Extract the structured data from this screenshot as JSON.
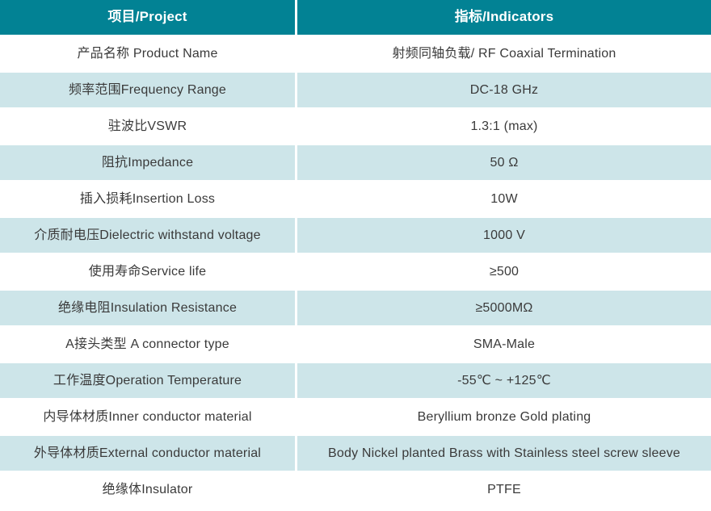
{
  "table": {
    "header": {
      "project": "项目/Project",
      "indicators": "指标/Indicators"
    },
    "rows": [
      {
        "project": "产品名称 Product Name",
        "indicator": "射频同轴负载/ RF Coaxial Termination"
      },
      {
        "project": "频率范围Frequency Range",
        "indicator": "DC-18 GHz"
      },
      {
        "project": "驻波比VSWR",
        "indicator": "1.3:1 (max)"
      },
      {
        "project": "阻抗Impedance",
        "indicator": "50 Ω"
      },
      {
        "project": "插入损耗Insertion Loss",
        "indicator": "10W"
      },
      {
        "project": "介质耐电压Dielectric withstand voltage",
        "indicator": "1000 V"
      },
      {
        "project": "使用寿命Service life",
        "indicator": "≥500"
      },
      {
        "project": "绝缘电阻Insulation Resistance",
        "indicator": "≥5000MΩ"
      },
      {
        "project": "A接头类型 A connector type",
        "indicator": "SMA-Male"
      },
      {
        "project": "工作温度Operation Temperature",
        "indicator": "-55℃ ~ +125℃"
      },
      {
        "project": "内导体材质Inner conductor material",
        "indicator": "Beryllium bronze Gold plating"
      },
      {
        "project": "外导体材质External conductor material",
        "indicator": "Body Nickel planted Brass with Stainless steel screw sleeve"
      },
      {
        "project": "绝缘体Insulator",
        "indicator": "PTFE"
      }
    ],
    "colors": {
      "header_bg": "#028294",
      "row_alt_bg": "#cde5e9",
      "header_text": "#ffffff",
      "body_text": "#3a3a3a"
    }
  }
}
